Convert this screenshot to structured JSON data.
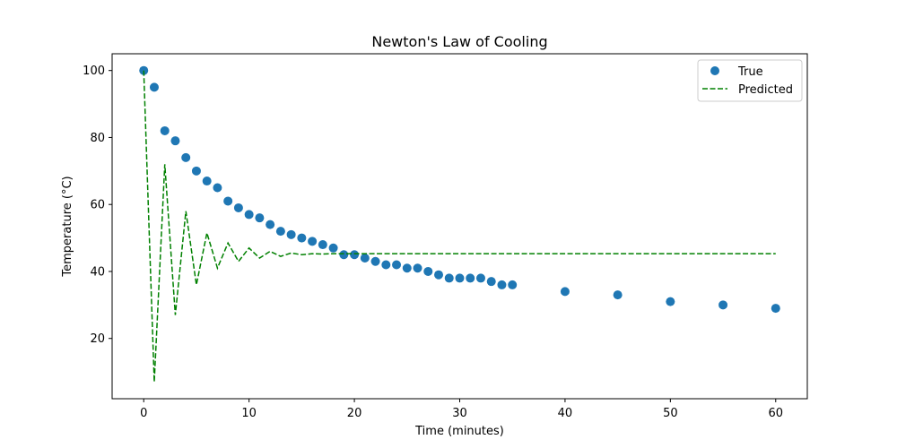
{
  "chart_data": {
    "type": "scatter",
    "title": "Newton's Law of Cooling",
    "xlabel": "Time (minutes)",
    "ylabel": "Temperature (°C)",
    "xlim": [
      -3,
      63
    ],
    "ylim": [
      2,
      105
    ],
    "xticks": [
      0,
      10,
      20,
      30,
      40,
      50,
      60
    ],
    "yticks": [
      20,
      40,
      60,
      80,
      100
    ],
    "grid": false,
    "legend_position": "upper right",
    "series": [
      {
        "name": "True",
        "kind": "scatter",
        "color": "#1f77b4",
        "x": [
          0,
          1,
          2,
          3,
          4,
          5,
          6,
          7,
          8,
          9,
          10,
          11,
          12,
          13,
          14,
          15,
          16,
          17,
          18,
          19,
          20,
          21,
          22,
          23,
          24,
          25,
          26,
          27,
          28,
          29,
          30,
          31,
          32,
          33,
          34,
          35,
          40,
          45,
          50,
          55,
          60
        ],
        "y": [
          100,
          95,
          82,
          79,
          74,
          70,
          67,
          65,
          61,
          59,
          57,
          56,
          54,
          52,
          51,
          50,
          49,
          48,
          47,
          45,
          45,
          44,
          43,
          42,
          42,
          41,
          41,
          40,
          39,
          38,
          38,
          38,
          38,
          37,
          36,
          36,
          34,
          33,
          31,
          30,
          29
        ]
      },
      {
        "name": "Predicted",
        "kind": "line",
        "style": "dashed",
        "color": "#008000",
        "x": [
          0,
          1,
          2,
          3,
          4,
          5,
          6,
          7,
          8,
          9,
          10,
          11,
          12,
          13,
          14,
          15,
          16,
          17,
          18,
          19,
          20,
          21,
          22,
          23,
          24,
          25,
          26,
          27,
          28,
          29,
          30,
          31,
          32,
          33,
          34,
          35,
          40,
          45,
          50,
          55,
          60
        ],
        "y": [
          100,
          7,
          72,
          27,
          58,
          36,
          51.5,
          41,
          48.5,
          43,
          47,
          44,
          46,
          44.5,
          45.5,
          45,
          45.3,
          45.2,
          45.3,
          45.3,
          45.3,
          45.3,
          45.3,
          45.3,
          45.3,
          45.3,
          45.3,
          45.3,
          45.3,
          45.3,
          45.3,
          45.3,
          45.3,
          45.3,
          45.3,
          45.3,
          45.3,
          45.3,
          45.3,
          45.3,
          45.3
        ]
      }
    ]
  }
}
